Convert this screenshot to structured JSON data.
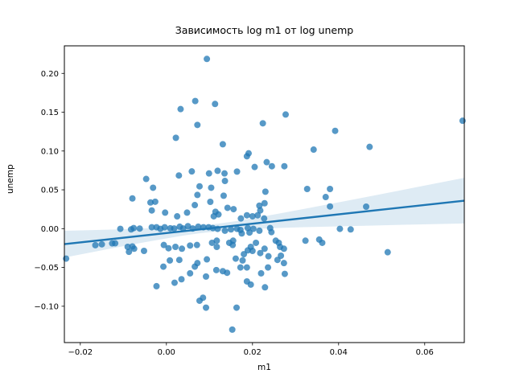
{
  "figure": {
    "title": "Зависимость log m1 от log unemp",
    "x_axis_label": "m1",
    "y_axis_label": "unemp",
    "background_color": "#ffffff",
    "frame_color": "#000000"
  },
  "chart_data": {
    "type": "scatter",
    "title": "Зависимость log m1 от log unemp",
    "xlabel": "m1",
    "ylabel": "unemp",
    "xlim": [
      -0.0237,
      0.0692
    ],
    "ylim": [
      -0.1468,
      0.2355
    ],
    "grid": false,
    "legend": null,
    "x_ticks": {
      "values": [
        -0.02,
        0.0,
        0.02,
        0.04,
        0.06
      ],
      "labels": [
        "−0.02",
        "0.00",
        "0.02",
        "0.04",
        "0.06"
      ]
    },
    "y_ticks": {
      "values": [
        0.2,
        0.15,
        0.1,
        0.05,
        0.0,
        -0.05,
        -0.1
      ],
      "labels": [
        "0.20",
        "0.15",
        "0.10",
        "0.05",
        "0.00",
        "−0.05",
        "−0.10"
      ]
    },
    "style": {
      "point_color": "#1f77b4",
      "point_opacity": 0.75,
      "point_radius": 4,
      "line_color": "#1f77b4",
      "line_width": 2.4,
      "band_color": "#1f77b4",
      "band_opacity": 0.15
    },
    "points": [
      [
        0.0067,
        0.1644
      ],
      [
        0.0033,
        0.154
      ],
      [
        0.0072,
        0.1336
      ],
      [
        0.0022,
        0.117
      ],
      [
        0.0094,
        0.2186
      ],
      [
        0.0113,
        0.1606
      ],
      [
        0.0277,
        0.147
      ],
      [
        0.0224,
        0.1357
      ],
      [
        0.0392,
        0.126
      ],
      [
        0.0131,
        0.1087
      ],
      [
        0.0191,
        0.097
      ],
      [
        0.0342,
        0.1018
      ],
      [
        0.0688,
        0.139
      ],
      [
        0.0472,
        0.1053
      ],
      [
        -0.0047,
        0.064
      ],
      [
        0.0059,
        0.0737
      ],
      [
        0.0029,
        0.0685
      ],
      [
        -0.0031,
        0.0527
      ],
      [
        0.0077,
        0.0545
      ],
      [
        -0.0079,
        0.0389
      ],
      [
        -0.0037,
        0.0337
      ],
      [
        -0.0026,
        0.0347
      ],
      [
        -0.0034,
        0.0234
      ],
      [
        -0.0003,
        0.0206
      ],
      [
        0.0025,
        0.0158
      ],
      [
        0.0048,
        0.0206
      ],
      [
        0.0066,
        0.0303
      ],
      [
        0.0072,
        0.0434
      ],
      [
        -0.0107,
        -0.0003
      ],
      [
        -0.0076,
        0.0007
      ],
      [
        -0.0062,
        0.0001
      ],
      [
        -0.0034,
        0.0018
      ],
      [
        -0.0023,
        0.0018
      ],
      [
        -0.0014,
        -0.0003
      ],
      [
        -0.0004,
        0.0018
      ],
      [
        0.0009,
        0.0004
      ],
      [
        0.0018,
        0.0002
      ],
      [
        0.0031,
        0.0025
      ],
      [
        0.0039,
        0.0002
      ],
      [
        0.005,
        0.0032
      ],
      [
        0.0061,
        0.0002
      ],
      [
        0.0074,
        0.0025
      ],
      [
        -0.0126,
        -0.019
      ],
      [
        -0.009,
        -0.0235
      ],
      [
        -0.0075,
        -0.0259
      ],
      [
        -0.0052,
        -0.0287
      ],
      [
        -0.0006,
        -0.0211
      ],
      [
        0.0005,
        -0.0253
      ],
      [
        0.0021,
        -0.0235
      ],
      [
        0.0036,
        -0.0259
      ],
      [
        0.0055,
        -0.0218
      ],
      [
        0.0071,
        -0.0211
      ],
      [
        -0.0233,
        -0.0386
      ],
      [
        -0.0165,
        -0.0213
      ],
      [
        -0.015,
        -0.0202
      ],
      [
        -0.0119,
        -0.0189
      ],
      [
        -0.0087,
        -0.0299
      ],
      [
        -0.0079,
        -0.023
      ],
      [
        -0.0082,
        -0.001
      ],
      [
        0.0187,
        0.0932
      ],
      [
        0.0233,
        0.0856
      ],
      [
        0.0245,
        0.0804
      ],
      [
        0.0274,
        0.0804
      ],
      [
        0.0205,
        0.0794
      ],
      [
        0.0164,
        0.0735
      ],
      [
        0.0099,
        0.0711
      ],
      [
        0.0119,
        0.0745
      ],
      [
        0.0135,
        0.0711
      ],
      [
        0.0136,
        0.0614
      ],
      [
        0.0104,
        0.0527
      ],
      [
        0.0133,
        0.0424
      ],
      [
        0.0102,
        0.0345
      ],
      [
        0.023,
        0.0476
      ],
      [
        0.0327,
        0.0511
      ],
      [
        0.038,
        0.0511
      ],
      [
        0.037,
        0.0407
      ],
      [
        0.038,
        0.0286
      ],
      [
        0.0142,
        0.0268
      ],
      [
        0.0156,
        0.0251
      ],
      [
        0.0216,
        0.0296
      ],
      [
        0.0228,
        0.0327
      ],
      [
        0.0114,
        0.0217
      ],
      [
        0.011,
        0.0159
      ],
      [
        0.0121,
        0.0183
      ],
      [
        0.0173,
        0.0131
      ],
      [
        0.0187,
        0.0172
      ],
      [
        0.02,
        0.0159
      ],
      [
        0.0212,
        0.0172
      ],
      [
        0.0218,
        0.0234
      ],
      [
        0.0227,
        0.0131
      ],
      [
        0.0172,
        -0.0017
      ],
      [
        0.0189,
        0.0007
      ],
      [
        0.0202,
        -0.0003
      ],
      [
        0.0216,
        -0.0027
      ],
      [
        0.0193,
        -0.0051
      ],
      [
        0.0175,
        -0.0062
      ],
      [
        0.0086,
        0.0018
      ],
      [
        0.0098,
        0.0018
      ],
      [
        0.0108,
        0.0007
      ],
      [
        0.0119,
        -0.0003
      ],
      [
        0.0136,
        -0.0027
      ],
      [
        0.015,
        -0.001
      ],
      [
        0.0164,
        -0.0003
      ],
      [
        0.0241,
        0.0007
      ],
      [
        0.0244,
        -0.0045
      ],
      [
        0.0254,
        -0.0155
      ],
      [
        0.0261,
        -0.0183
      ],
      [
        0.0264,
        -0.0235
      ],
      [
        0.0273,
        -0.0259
      ],
      [
        0.0228,
        -0.0259
      ],
      [
        0.0218,
        -0.0315
      ],
      [
        0.0196,
        -0.0235
      ],
      [
        0.0189,
        -0.028
      ],
      [
        0.02,
        -0.0287
      ],
      [
        0.0208,
        -0.0183
      ],
      [
        0.018,
        -0.0329
      ],
      [
        0.0155,
        -0.0155
      ],
      [
        0.0146,
        -0.0183
      ],
      [
        0.0154,
        -0.0211
      ],
      [
        0.0117,
        -0.0155
      ],
      [
        0.0106,
        -0.0183
      ],
      [
        0.0117,
        -0.0235
      ],
      [
        0.0323,
        -0.0155
      ],
      [
        0.0355,
        -0.0141
      ],
      [
        0.0362,
        -0.0183
      ],
      [
        0.0266,
        -0.0349
      ],
      [
        0.0237,
        -0.0356
      ],
      [
        0.0464,
        0.0283
      ],
      [
        0.0403,
        -0.0003
      ],
      [
        0.0428,
        -0.001
      ],
      [
        0.0514,
        -0.0304
      ],
      [
        -0.0007,
        -0.049
      ],
      [
        0.0008,
        -0.041
      ],
      [
        0.003,
        -0.0403
      ],
      [
        0.0066,
        -0.049
      ],
      [
        0.0072,
        -0.0444
      ],
      [
        0.0055,
        -0.0576
      ],
      [
        0.0035,
        -0.0652
      ],
      [
        0.0019,
        -0.0697
      ],
      [
        -0.0023,
        -0.0742
      ],
      [
        0.0077,
        -0.0929
      ],
      [
        0.0094,
        -0.0396
      ],
      [
        0.0161,
        -0.0386
      ],
      [
        0.0177,
        -0.041
      ],
      [
        0.0116,
        -0.0534
      ],
      [
        0.0131,
        -0.0548
      ],
      [
        0.0141,
        -0.0569
      ],
      [
        0.0092,
        -0.0617
      ],
      [
        0.0172,
        -0.05
      ],
      [
        0.0187,
        -0.05
      ],
      [
        0.0236,
        -0.05
      ],
      [
        0.0258,
        -0.0403
      ],
      [
        0.0273,
        -0.0444
      ],
      [
        0.022,
        -0.0576
      ],
      [
        0.0275,
        -0.0583
      ],
      [
        0.0187,
        -0.068
      ],
      [
        0.0196,
        -0.0721
      ],
      [
        0.0229,
        -0.0756
      ],
      [
        0.0085,
        -0.089
      ],
      [
        0.0092,
        -0.1018
      ],
      [
        0.0163,
        -0.1018
      ],
      [
        0.0153,
        -0.1301
      ]
    ],
    "regression_line": {
      "x": [
        -0.0237,
        0.0692
      ],
      "y": [
        -0.02,
        0.036
      ]
    },
    "confidence_band": {
      "x": [
        -0.0237,
        -0.018,
        -0.012,
        -0.006,
        0.0,
        0.004,
        0.008,
        0.012,
        0.016,
        0.02,
        0.026,
        0.033,
        0.04,
        0.048,
        0.056,
        0.0692
      ],
      "top": [
        -0.0028,
        -0.002,
        -0.0011,
        0.0,
        0.0012,
        0.0023,
        0.004,
        0.0064,
        0.0095,
        0.0133,
        0.0192,
        0.0265,
        0.0339,
        0.0424,
        0.0511,
        0.0654
      ],
      "bottom": [
        -0.0372,
        -0.0311,
        -0.0247,
        -0.0185,
        -0.0126,
        -0.0089,
        -0.0058,
        -0.0034,
        -0.0017,
        -0.0005,
        0.0008,
        0.002,
        0.0029,
        0.004,
        0.0051,
        0.0066
      ]
    }
  }
}
